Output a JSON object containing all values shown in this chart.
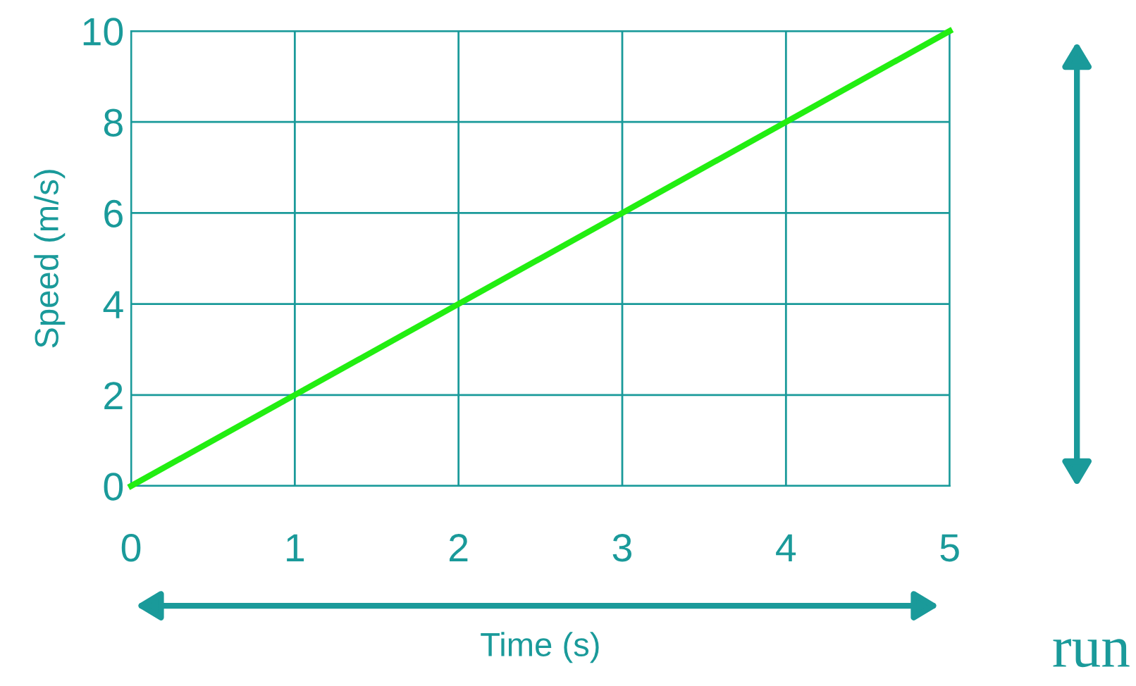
{
  "chart_data": {
    "type": "line",
    "xlabel": "Time (s)",
    "ylabel": "Speed (m/s)",
    "x": [
      0,
      5
    ],
    "series": [
      {
        "color": "#22ee11",
        "values": [
          0,
          10
        ]
      }
    ],
    "xlim": [
      0,
      5
    ],
    "ylim": [
      0,
      10
    ],
    "xticks": [
      0,
      1,
      2,
      3,
      4,
      5
    ],
    "yticks": [
      0,
      2,
      4,
      6,
      8,
      10
    ],
    "grid": true,
    "marker": "none",
    "line_style": "solid",
    "annotations": [
      "run"
    ]
  }
}
